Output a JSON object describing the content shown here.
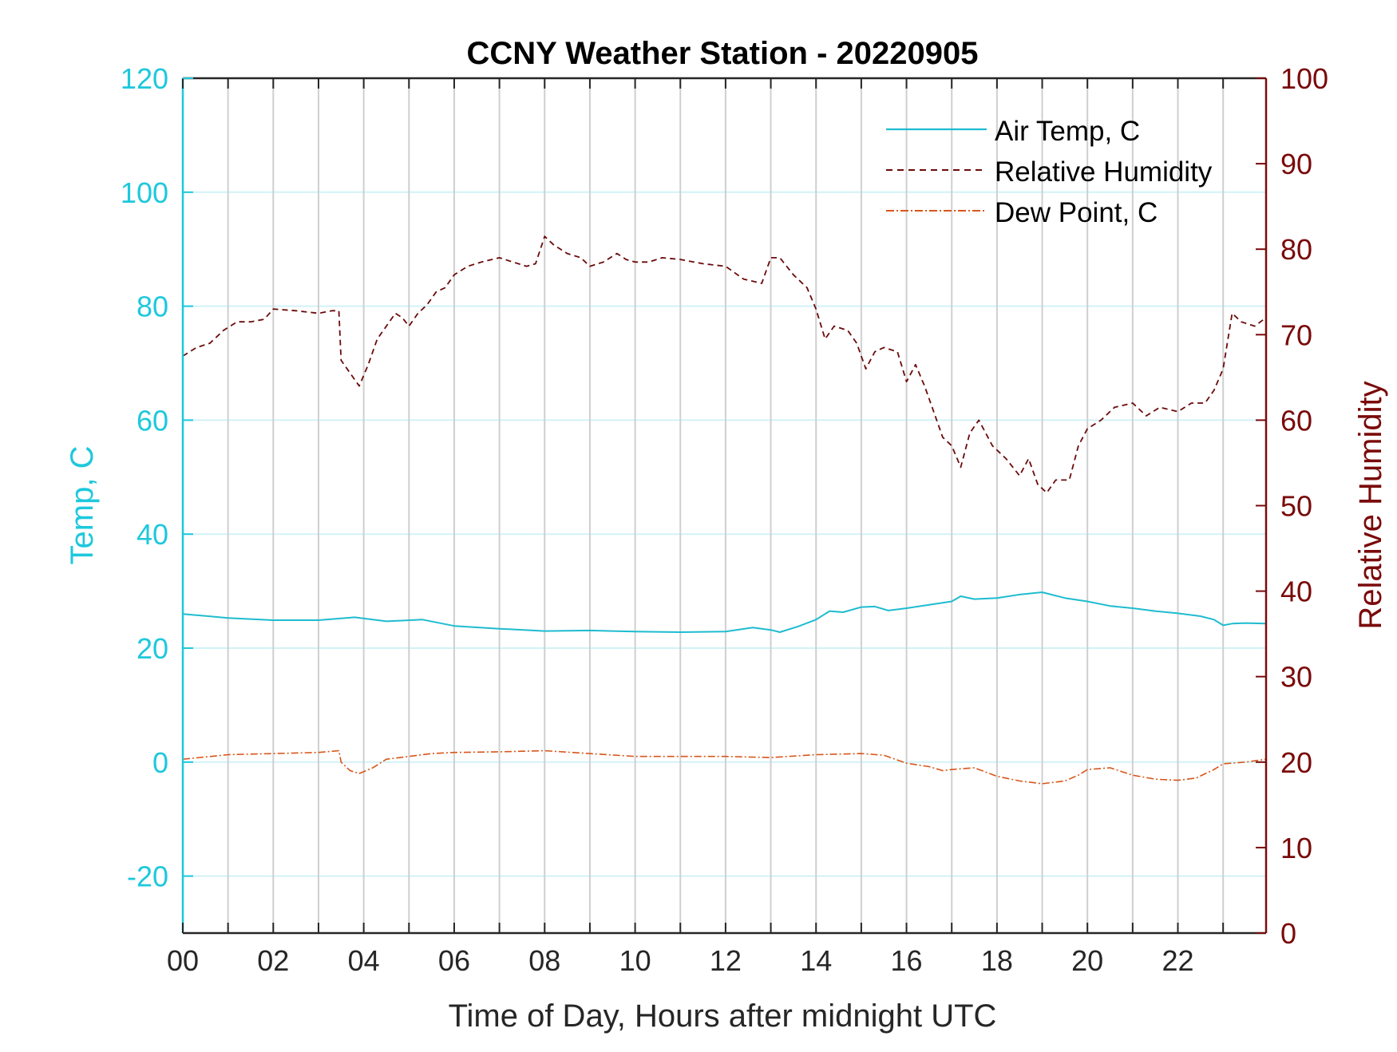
{
  "chart_data": {
    "type": "line",
    "title": "CCNY Weather Station - 20220905",
    "xlabel": "Time of Day, Hours after midnight UTC",
    "ylabel_left": "Temp, C",
    "ylabel_right": "Relative Humidity",
    "xlim": [
      0,
      23.95
    ],
    "ylim_left": [
      -30,
      120
    ],
    "ylim_right": [
      0,
      100
    ],
    "x_ticks": [
      0,
      2,
      4,
      6,
      8,
      10,
      12,
      14,
      16,
      18,
      20,
      22
    ],
    "x_tick_labels": [
      "00",
      "02",
      "04",
      "06",
      "08",
      "10",
      "12",
      "14",
      "16",
      "18",
      "20",
      "22"
    ],
    "x_grid": [
      0,
      1,
      2,
      3,
      4,
      5,
      6,
      7,
      8,
      9,
      10,
      11,
      12,
      13,
      14,
      15,
      16,
      17,
      18,
      19,
      20,
      21,
      22,
      23
    ],
    "y_ticks_left": [
      -20,
      0,
      20,
      40,
      60,
      80,
      100,
      120
    ],
    "y_ticks_right": [
      0,
      10,
      20,
      30,
      40,
      50,
      60,
      70,
      80,
      90,
      100
    ],
    "colors": {
      "left_axis": "#1ec8dc",
      "right_axis": "#7a0a0a",
      "air_temp": "#1ebcd0",
      "humidity": "#6b0a0a",
      "dew_point": "#d8561a",
      "grid_v": "#cfcfcf",
      "grid_h": "#d2f2f7"
    },
    "legend": {
      "position": "top-right",
      "entries": [
        "Air Temp, C",
        "Relative Humidity",
        "Dew Point, C"
      ]
    },
    "series": [
      {
        "name": "Air Temp, C",
        "axis": "left",
        "style": "solid",
        "x": [
          0,
          1,
          2,
          3,
          3.8,
          4.5,
          5.3,
          6,
          7,
          8,
          9,
          10,
          11,
          12,
          12.6,
          13,
          13.2,
          13.6,
          14,
          14.3,
          14.6,
          15,
          15.3,
          15.6,
          16,
          16.5,
          17,
          17.2,
          17.5,
          18,
          18.5,
          19,
          19.5,
          20,
          20.5,
          21,
          21.5,
          22,
          22.5,
          22.8,
          23,
          23.2,
          23.5,
          23.95
        ],
        "y": [
          26.0,
          25.3,
          24.9,
          24.9,
          25.4,
          24.7,
          25.0,
          23.9,
          23.4,
          23.0,
          23.1,
          22.9,
          22.8,
          22.9,
          23.6,
          23.2,
          22.8,
          23.8,
          25.0,
          26.5,
          26.3,
          27.2,
          27.3,
          26.6,
          27.0,
          27.6,
          28.2,
          29.1,
          28.6,
          28.8,
          29.4,
          29.8,
          28.8,
          28.2,
          27.4,
          27.0,
          26.5,
          26.1,
          25.6,
          25.0,
          24.0,
          24.3,
          24.4,
          24.3
        ]
      },
      {
        "name": "Relative Humidity",
        "axis": "right",
        "style": "dashed",
        "x": [
          0,
          0.3,
          0.6,
          0.9,
          1.2,
          1.5,
          1.8,
          2.0,
          2.5,
          3.0,
          3.3,
          3.45,
          3.5,
          3.7,
          3.9,
          4.1,
          4.3,
          4.5,
          4.7,
          4.85,
          5.0,
          5.2,
          5.4,
          5.6,
          5.8,
          6.0,
          6.3,
          6.6,
          7.0,
          7.3,
          7.6,
          7.8,
          8.0,
          8.2,
          8.5,
          8.8,
          9.0,
          9.3,
          9.6,
          9.8,
          10.0,
          10.3,
          10.6,
          11.0,
          11.5,
          12.0,
          12.4,
          12.8,
          13.0,
          13.2,
          13.5,
          13.8,
          14.0,
          14.2,
          14.4,
          14.7,
          14.9,
          15.1,
          15.3,
          15.5,
          15.8,
          16.0,
          16.2,
          16.4,
          16.6,
          16.8,
          17.0,
          17.2,
          17.4,
          17.6,
          17.9,
          18.2,
          18.5,
          18.7,
          18.9,
          19.1,
          19.3,
          19.6,
          19.8,
          20.0,
          20.3,
          20.6,
          21.0,
          21.3,
          21.6,
          22.0,
          22.3,
          22.6,
          22.8,
          23.0,
          23.2,
          23.4,
          23.7,
          23.95
        ],
        "y": [
          67.5,
          68.5,
          69.0,
          70.5,
          71.5,
          71.5,
          71.8,
          73.0,
          72.8,
          72.5,
          72.8,
          72.8,
          67.0,
          65.5,
          64.0,
          66.5,
          69.5,
          71.0,
          72.5,
          72.0,
          71.0,
          72.5,
          73.5,
          75.0,
          75.5,
          77.0,
          78.0,
          78.5,
          79.0,
          78.5,
          78.0,
          78.3,
          81.5,
          80.5,
          79.5,
          79.0,
          78.0,
          78.5,
          79.5,
          78.8,
          78.5,
          78.5,
          79.0,
          78.8,
          78.3,
          78.0,
          76.5,
          76.0,
          79.0,
          79.0,
          77.0,
          75.5,
          73.0,
          69.5,
          71.0,
          70.5,
          69.0,
          66.0,
          68.0,
          68.5,
          68.0,
          64.5,
          66.5,
          64.0,
          61.0,
          58.0,
          57.0,
          54.5,
          58.5,
          60.0,
          57.0,
          55.5,
          53.5,
          55.5,
          52.5,
          51.5,
          53.0,
          53.0,
          57.0,
          59.0,
          60.0,
          61.5,
          62.0,
          60.5,
          61.5,
          61.0,
          62.0,
          62.0,
          63.5,
          66.0,
          72.5,
          71.5,
          71.0,
          72.0
        ]
      },
      {
        "name": "Dew Point, C",
        "axis": "left",
        "style": "dashdot",
        "x": [
          0,
          1,
          2,
          3,
          3.45,
          3.5,
          3.7,
          3.9,
          4.2,
          4.5,
          5,
          5.5,
          6,
          7,
          8,
          9,
          10,
          11,
          12,
          13,
          14,
          15,
          15.5,
          16,
          16.5,
          16.8,
          17,
          17.5,
          18,
          18.5,
          19,
          19.5,
          19.8,
          20,
          20.5,
          21,
          21.5,
          22,
          22.4,
          22.8,
          23,
          23.5,
          23.95
        ],
        "y": [
          0.5,
          1.3,
          1.5,
          1.7,
          2.0,
          0.0,
          -1.5,
          -2.0,
          -1.0,
          0.5,
          1.0,
          1.5,
          1.7,
          1.8,
          2.0,
          1.5,
          1.0,
          1.0,
          1.0,
          0.8,
          1.3,
          1.5,
          1.2,
          -0.2,
          -0.8,
          -1.5,
          -1.3,
          -1.0,
          -2.5,
          -3.3,
          -3.8,
          -3.3,
          -2.3,
          -1.3,
          -1.0,
          -2.3,
          -3.0,
          -3.2,
          -2.8,
          -1.3,
          -0.3,
          0.0,
          0.5
        ]
      }
    ]
  }
}
